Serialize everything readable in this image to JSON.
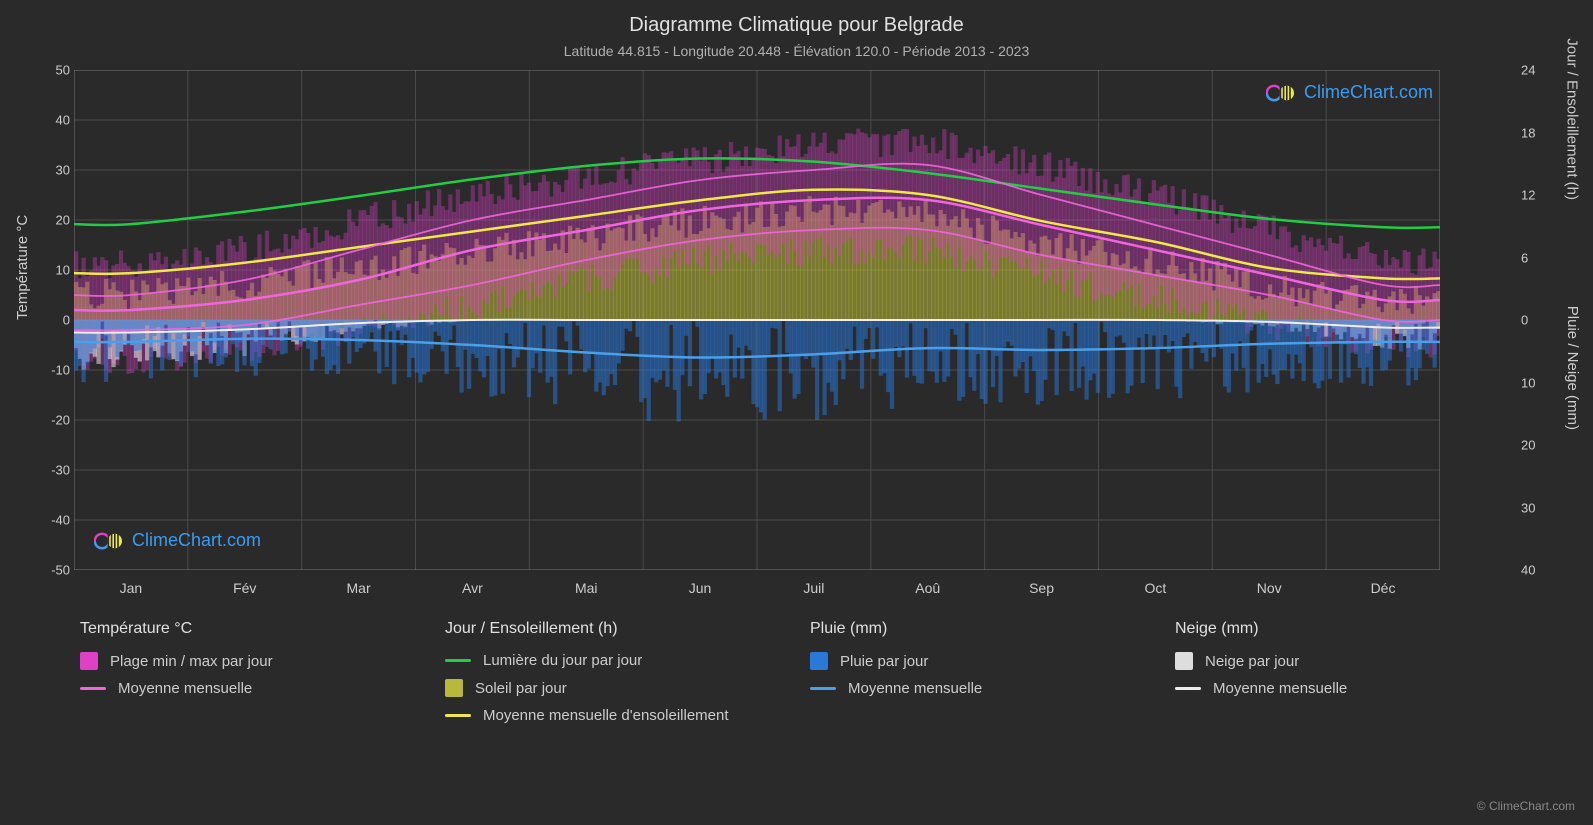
{
  "title": "Diagramme Climatique pour Belgrade",
  "subtitle": "Latitude 44.815 - Longitude 20.448 - Élévation 120.0 - Période 2013 - 2023",
  "copyright": "© ClimeChart.com",
  "watermark_text": "ClimeChart.com",
  "axes": {
    "left_label": "Température °C",
    "right_label_top": "Jour / Ensoleillement (h)",
    "right_label_bottom": "Pluie / Neige (mm)",
    "left_ticks": [
      50,
      40,
      30,
      20,
      10,
      0,
      -10,
      -20,
      -30,
      -40,
      -50
    ],
    "right_ticks_top": [
      24,
      18,
      12,
      6,
      0
    ],
    "right_ticks_bottom": [
      10,
      20,
      30,
      40
    ],
    "months": [
      "Jan",
      "Fév",
      "Mar",
      "Avr",
      "Mai",
      "Jun",
      "Juil",
      "Aoû",
      "Sep",
      "Oct",
      "Nov",
      "Déc"
    ]
  },
  "colors": {
    "background": "#2a2a2a",
    "grid": "#4a4a4a",
    "grid_minor": "#3a3a3a",
    "text": "#cccccc",
    "temp_range": "#e040c8",
    "temp_range_fill": "rgba(224,64,200,0.35)",
    "temp_avg": "#ee66dd",
    "daylight": "#22cc44",
    "sunshine_fill": "rgba(200,200,60,0.5)",
    "sunshine_avg": "#f0e84a",
    "rain_fill": "rgba(40,120,220,0.5)",
    "rain_avg": "#4aa0e8",
    "snow_fill": "rgba(220,220,220,0.6)",
    "snow_avg": "#eeeeee",
    "watermark": "#3a9cf0"
  },
  "chart": {
    "temp_ylim": [
      -50,
      50
    ],
    "hours_ylim": [
      0,
      24
    ],
    "precip_ylim": [
      0,
      40
    ],
    "months_n": 12,
    "temp_min_monthly": [
      -2,
      -1,
      3,
      7,
      12,
      16,
      18,
      18,
      13,
      9,
      5,
      0
    ],
    "temp_max_monthly": [
      5,
      8,
      14,
      20,
      24,
      28,
      30,
      31,
      25,
      19,
      13,
      7
    ],
    "temp_avg_monthly": [
      2,
      4,
      8,
      14,
      18,
      22,
      24,
      24,
      19,
      14,
      9,
      4
    ],
    "temp_range_low_monthly": [
      -8,
      -6,
      -2,
      3,
      8,
      12,
      14,
      14,
      9,
      4,
      -1,
      -5
    ],
    "temp_range_high_monthly": [
      11,
      14,
      20,
      25,
      29,
      32,
      35,
      36,
      31,
      25,
      18,
      12
    ],
    "daylight_monthly": [
      9.2,
      10.4,
      11.9,
      13.5,
      14.8,
      15.5,
      15.2,
      14.1,
      12.6,
      11.1,
      9.7,
      8.9
    ],
    "sunshine_monthly": [
      2.5,
      3.5,
      5.0,
      6.5,
      8.0,
      9.5,
      10.5,
      10.0,
      7.5,
      5.5,
      3.0,
      2.0
    ],
    "rain_avg_monthly": [
      3.5,
      3.0,
      3.2,
      4.0,
      5.2,
      6.0,
      5.5,
      4.5,
      4.8,
      4.5,
      3.8,
      3.5
    ],
    "snow_avg_monthly": [
      2.0,
      1.5,
      0.5,
      0,
      0,
      0,
      0,
      0,
      0,
      0,
      0.3,
      1.2
    ]
  },
  "legend": {
    "temp_header": "Température °C",
    "temp_range_label": "Plage min / max par jour",
    "temp_avg_label": "Moyenne mensuelle",
    "day_header": "Jour / Ensoleillement (h)",
    "daylight_label": "Lumière du jour par jour",
    "sunshine_label": "Soleil par jour",
    "sunshine_avg_label": "Moyenne mensuelle d'ensoleillement",
    "rain_header": "Pluie (mm)",
    "rain_daily_label": "Pluie par jour",
    "rain_avg_label": "Moyenne mensuelle",
    "snow_header": "Neige (mm)",
    "snow_daily_label": "Neige par jour",
    "snow_avg_label": "Moyenne mensuelle"
  },
  "typography": {
    "title_fontsize": 20,
    "subtitle_fontsize": 14,
    "tick_fontsize": 13,
    "legend_fontsize": 15
  }
}
